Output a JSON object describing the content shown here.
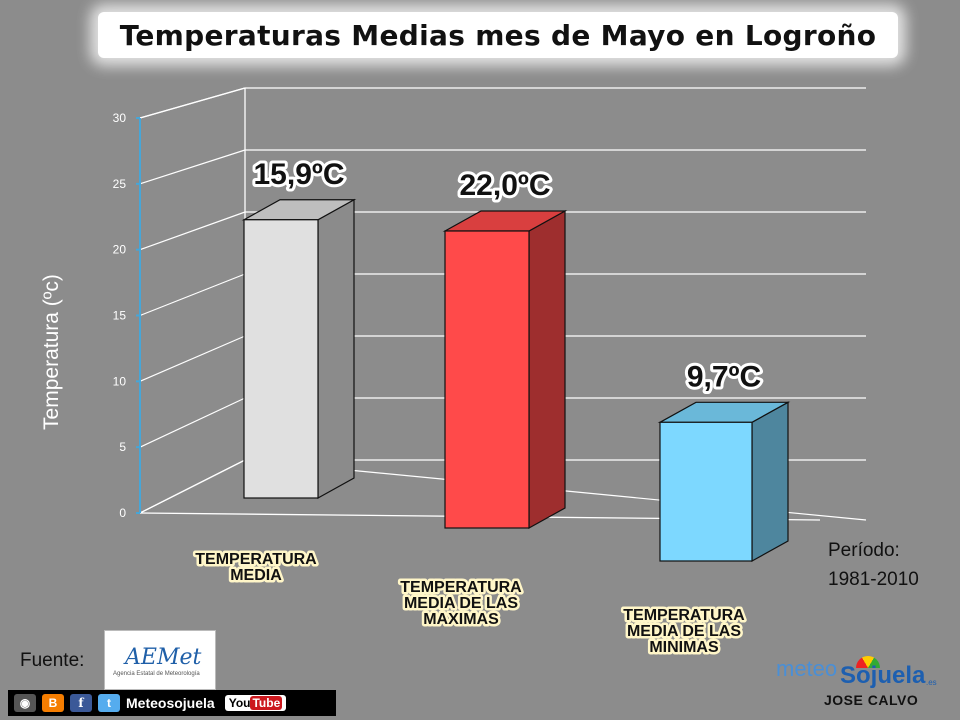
{
  "chart_data": {
    "type": "bar",
    "title": "Temperaturas Medias mes de Mayo en Logroño",
    "ylabel": "Temperatura (ºc)",
    "xlabel": "",
    "ylim": [
      0,
      30
    ],
    "yticks": [
      "0",
      "5",
      "10",
      "15",
      "20",
      "25",
      "30"
    ],
    "grid": true,
    "categories": [
      [
        "TEMPERATURA",
        "MEDIA"
      ],
      [
        "TEMPERATURA",
        "MEDIA DE LAS",
        "MAXIMAS"
      ],
      [
        "TEMPERATURA",
        "MEDIA DE LAS",
        "MINIMAS"
      ]
    ],
    "values": [
      15.9,
      22.0,
      9.7
    ],
    "data_labels": [
      "15,9ºC",
      "22,0ºC",
      "9,7ºC"
    ],
    "colors": [
      "#e0e0e0",
      "#ff4a4a",
      "#7dd8ff"
    ]
  },
  "annotations": {
    "periodo_label": "Período:",
    "periodo_value": "1981-2010"
  },
  "footer": {
    "fuente_label": "Fuente:",
    "aemet_logo_text": "AEMet",
    "aemet_sub_text": "Agencia Estatal de Meteorología",
    "social_name": "Meteosojuela",
    "youtube_you": "You",
    "youtube_tube": "Tube",
    "brand_meteo": "meteo",
    "brand_sojuela": "Sojuela",
    "brand_es": ".es",
    "author": "JOSE CALVO"
  }
}
